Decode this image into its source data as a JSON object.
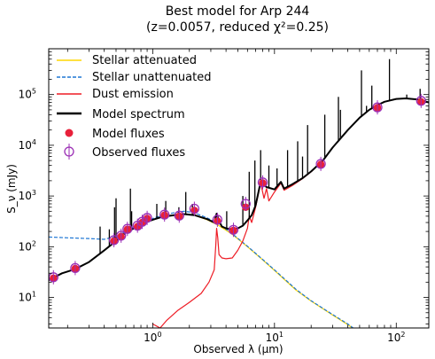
{
  "chart_data": {
    "type": "line",
    "title_line1": "Best model for Arp 244",
    "title_line2": "(z=0.0057, reduced χ²=0.25)",
    "xlabel": "Observed λ (μm)",
    "ylabel": "S_ν (mJy)",
    "xscale": "log",
    "yscale": "log",
    "xlim": [
      0.14,
      185
    ],
    "ylim": [
      2.5,
      800000
    ],
    "x_ticks": [
      {
        "value": 1,
        "label": "10",
        "exp": "0"
      },
      {
        "value": 10,
        "label": "10",
        "exp": "1"
      },
      {
        "value": 100,
        "label": "10",
        "exp": "2"
      }
    ],
    "y_ticks": [
      {
        "value": 10,
        "label": "10",
        "exp": "1"
      },
      {
        "value": 100,
        "label": "10",
        "exp": "2"
      },
      {
        "value": 1000,
        "label": "10",
        "exp": "3"
      },
      {
        "value": 10000,
        "label": "10",
        "exp": "4"
      },
      {
        "value": 100000,
        "label": "10",
        "exp": "5"
      }
    ],
    "legend_position": "top-left",
    "grid": false,
    "series": [
      {
        "name": "Stellar attenuated",
        "color": "#ffd700",
        "style": "solid",
        "x": [
          0.14,
          0.18,
          0.23,
          0.3,
          0.4,
          0.5,
          0.6,
          0.7,
          0.8,
          0.9,
          1.0,
          1.2,
          1.5,
          1.8,
          2.2,
          2.8,
          3.5,
          4.5,
          6,
          8,
          10,
          15,
          20,
          30,
          40,
          50
        ],
        "y": [
          22,
          30,
          36,
          50,
          85,
          130,
          190,
          230,
          270,
          310,
          340,
          390,
          420,
          440,
          420,
          340,
          260,
          175,
          100,
          55,
          34,
          14,
          8.5,
          4.5,
          2.9,
          2.0
        ]
      },
      {
        "name": "Stellar unattenuated",
        "color": "#1f77d4",
        "style": "dashed",
        "x": [
          0.14,
          0.2,
          0.3,
          0.4,
          0.5,
          0.6,
          0.8,
          1.0,
          1.2,
          1.5,
          1.8,
          2.2,
          2.8,
          3.5,
          4.5,
          6,
          8,
          10,
          15,
          20,
          30,
          40,
          50
        ],
        "y": [
          155,
          150,
          145,
          140,
          160,
          200,
          290,
          360,
          420,
          470,
          500,
          470,
          370,
          280,
          180,
          102,
          56,
          35,
          14.5,
          8.6,
          4.6,
          3.0,
          2.0
        ]
      },
      {
        "name": "Dust emission",
        "color": "#ee1c25",
        "style": "solid",
        "x": [
          1.0,
          1.15,
          1.3,
          1.6,
          2.0,
          2.5,
          2.9,
          3.2,
          3.3,
          3.35,
          3.42,
          3.5,
          3.7,
          4.0,
          4.5,
          5.0,
          5.5,
          6.0,
          6.2,
          6.5,
          7.0,
          7.7,
          8.2,
          8.6,
          9.0,
          10,
          11.3,
          12,
          14,
          17,
          20,
          25,
          30,
          40,
          50,
          60,
          70,
          80,
          100,
          120,
          150,
          185
        ],
        "y": [
          3.0,
          2.5,
          3.5,
          5.5,
          8,
          12,
          20,
          35,
          110,
          230,
          150,
          70,
          60,
          58,
          60,
          85,
          130,
          230,
          400,
          300,
          600,
          1800,
          900,
          1400,
          800,
          1200,
          1800,
          1300,
          1600,
          2200,
          3000,
          5000,
          9000,
          20000,
          35000,
          50000,
          62000,
          72000,
          82000,
          84000,
          80000,
          70000
        ]
      },
      {
        "name": "Model spectrum",
        "color": "#000000",
        "style": "solid",
        "x": [
          0.14,
          0.18,
          0.23,
          0.3,
          0.4,
          0.5,
          0.6,
          0.7,
          0.8,
          0.9,
          1.0,
          1.2,
          1.5,
          1.8,
          2.2,
          2.8,
          3.2,
          3.35,
          3.5,
          3.7,
          4.0,
          4.5,
          5.0,
          5.5,
          6.0,
          6.5,
          7.0,
          7.7,
          8.6,
          10,
          11.3,
          12,
          14,
          17,
          20,
          25,
          30,
          40,
          50,
          60,
          70,
          80,
          100,
          120,
          150,
          185
        ],
        "y": [
          22,
          30,
          36,
          50,
          85,
          130,
          190,
          230,
          270,
          310,
          340,
          390,
          420,
          440,
          420,
          350,
          300,
          450,
          320,
          250,
          230,
          220,
          230,
          260,
          330,
          420,
          650,
          1900,
          1500,
          1350,
          1900,
          1400,
          1700,
          2250,
          3050,
          5000,
          9000,
          20000,
          35000,
          50000,
          62000,
          72000,
          82000,
          84000,
          80000,
          70000
        ]
      }
    ],
    "spikes": [
      {
        "x": 0.37,
        "y": 250
      },
      {
        "x": 0.44,
        "y": 220
      },
      {
        "x": 0.486,
        "y": 600
      },
      {
        "x": 0.5,
        "y": 900
      },
      {
        "x": 0.656,
        "y": 1400
      },
      {
        "x": 0.672,
        "y": 500
      },
      {
        "x": 1.08,
        "y": 700
      },
      {
        "x": 1.28,
        "y": 800
      },
      {
        "x": 1.64,
        "y": 600
      },
      {
        "x": 1.87,
        "y": 1200
      },
      {
        "x": 2.12,
        "y": 700
      },
      {
        "x": 4.05,
        "y": 500
      },
      {
        "x": 5.5,
        "y": 1000
      },
      {
        "x": 6.2,
        "y": 3000
      },
      {
        "x": 6.9,
        "y": 5000
      },
      {
        "x": 7.7,
        "y": 8000
      },
      {
        "x": 8.99,
        "y": 4000
      },
      {
        "x": 10.5,
        "y": 3500
      },
      {
        "x": 12.8,
        "y": 8000
      },
      {
        "x": 15.5,
        "y": 12000
      },
      {
        "x": 17.0,
        "y": 6000
      },
      {
        "x": 18.7,
        "y": 25000
      },
      {
        "x": 25.9,
        "y": 40000
      },
      {
        "x": 33.5,
        "y": 90000
      },
      {
        "x": 34.8,
        "y": 50000
      },
      {
        "x": 51.8,
        "y": 300000
      },
      {
        "x": 57,
        "y": 60000
      },
      {
        "x": 63,
        "y": 150000
      },
      {
        "x": 88,
        "y": 500000
      },
      {
        "x": 122,
        "y": 100000
      },
      {
        "x": 157,
        "y": 130000
      }
    ],
    "model_fluxes": {
      "name": "Model fluxes",
      "color": "#e8203a",
      "x": [
        0.153,
        0.231,
        0.48,
        0.55,
        0.62,
        0.75,
        0.82,
        0.9,
        1.25,
        1.65,
        2.2,
        3.4,
        4.6,
        5.8,
        8.0,
        24,
        70,
        160
      ],
      "y": [
        24,
        37,
        130,
        160,
        220,
        250,
        300,
        360,
        420,
        400,
        520,
        320,
        210,
        600,
        1800,
        4200,
        55000,
        72000
      ]
    },
    "observed_fluxes": {
      "name": "Observed fluxes",
      "color": "#9b2fb5",
      "x": [
        0.153,
        0.231,
        0.48,
        0.55,
        0.62,
        0.75,
        0.82,
        0.9,
        1.25,
        1.65,
        2.2,
        3.4,
        4.6,
        5.8,
        8.0,
        24,
        70,
        160
      ],
      "y": [
        25,
        38,
        135,
        165,
        225,
        260,
        310,
        370,
        430,
        410,
        560,
        340,
        215,
        700,
        1850,
        4300,
        56000,
        75000
      ]
    }
  }
}
